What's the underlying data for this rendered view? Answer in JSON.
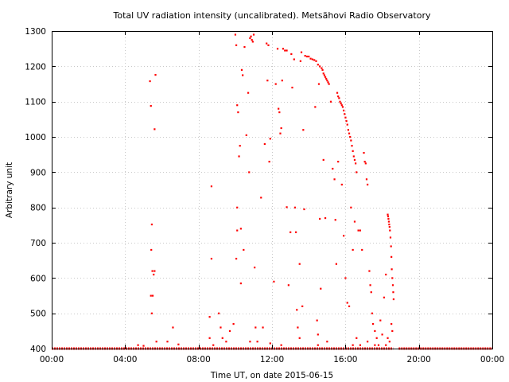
{
  "chart_data": {
    "type": "scatter",
    "title": "Total UV radiation intensity (uncalibrated). Metsähovi Radio Observatory",
    "xlabel": "Time UT, on date 2015-06-15",
    "ylabel": "Arbitrary unit",
    "x_unit": "hours",
    "xlim": [
      0,
      24
    ],
    "ylim": [
      400,
      1300
    ],
    "x_ticks": [
      0,
      4,
      8,
      12,
      16,
      20,
      24
    ],
    "x_tick_labels": [
      "00:00",
      "04:00",
      "08:00",
      "12:00",
      "16:00",
      "20:00",
      "00:00"
    ],
    "y_ticks": [
      400,
      500,
      600,
      700,
      800,
      900,
      1000,
      1100,
      1200,
      1300
    ],
    "y_tick_labels": [
      "400",
      "500",
      "600",
      "700",
      "800",
      "900",
      "1000",
      "1100",
      "1200",
      "1300"
    ],
    "grid": true,
    "marker_color": "#ff0000",
    "baseline": {
      "y": 400,
      "x_ranges": [
        [
          0,
          18.6
        ],
        [
          18.9,
          24
        ]
      ]
    },
    "points": [
      [
        4.7,
        410
      ],
      [
        5.0,
        408
      ],
      [
        5.35,
        1158
      ],
      [
        5.4,
        1088
      ],
      [
        5.45,
        752
      ],
      [
        5.42,
        680
      ],
      [
        5.48,
        620
      ],
      [
        5.55,
        610
      ],
      [
        5.4,
        550
      ],
      [
        5.5,
        550
      ],
      [
        5.45,
        500
      ],
      [
        5.6,
        1022
      ],
      [
        5.65,
        1176
      ],
      [
        5.6,
        620
      ],
      [
        5.7,
        420
      ],
      [
        6.3,
        420
      ],
      [
        6.6,
        460
      ],
      [
        6.9,
        412
      ],
      [
        8.7,
        860
      ],
      [
        8.7,
        655
      ],
      [
        8.6,
        490
      ],
      [
        8.6,
        430
      ],
      [
        8.8,
        410
      ],
      [
        9.1,
        500
      ],
      [
        9.2,
        460
      ],
      [
        9.3,
        430
      ],
      [
        9.5,
        420
      ],
      [
        9.7,
        450
      ],
      [
        9.9,
        470
      ],
      [
        10.0,
        1290
      ],
      [
        10.05,
        1260
      ],
      [
        10.1,
        1090
      ],
      [
        10.15,
        1070
      ],
      [
        10.2,
        945
      ],
      [
        10.25,
        975
      ],
      [
        10.1,
        800
      ],
      [
        10.1,
        735
      ],
      [
        10.05,
        655
      ],
      [
        10.3,
        740
      ],
      [
        10.3,
        585
      ],
      [
        10.35,
        1190
      ],
      [
        10.4,
        1175
      ],
      [
        10.45,
        680
      ],
      [
        10.5,
        1255
      ],
      [
        10.6,
        1005
      ],
      [
        10.7,
        1125
      ],
      [
        10.75,
        900
      ],
      [
        10.8,
        1280
      ],
      [
        10.85,
        1285
      ],
      [
        10.9,
        1275
      ],
      [
        10.95,
        1270
      ],
      [
        11.0,
        1290
      ],
      [
        11.05,
        630
      ],
      [
        11.1,
        460
      ],
      [
        11.2,
        420
      ],
      [
        11.4,
        828
      ],
      [
        11.5,
        460
      ],
      [
        11.6,
        980
      ],
      [
        11.7,
        1265
      ],
      [
        11.75,
        1160
      ],
      [
        11.8,
        1260
      ],
      [
        11.85,
        930
      ],
      [
        11.9,
        995
      ],
      [
        12.1,
        590
      ],
      [
        12.2,
        1150
      ],
      [
        12.3,
        1250
      ],
      [
        12.35,
        1080
      ],
      [
        12.4,
        1070
      ],
      [
        12.45,
        1010
      ],
      [
        12.5,
        1025
      ],
      [
        12.55,
        1160
      ],
      [
        12.6,
        1250
      ],
      [
        12.7,
        1245
      ],
      [
        12.8,
        1245
      ],
      [
        12.9,
        580
      ],
      [
        12.8,
        801
      ],
      [
        13.0,
        730
      ],
      [
        13.05,
        1235
      ],
      [
        13.1,
        1140
      ],
      [
        13.2,
        1220
      ],
      [
        13.25,
        800
      ],
      [
        13.3,
        730
      ],
      [
        13.35,
        510
      ],
      [
        13.4,
        460
      ],
      [
        13.5,
        640
      ],
      [
        13.55,
        1215
      ],
      [
        13.6,
        1240
      ],
      [
        13.65,
        520
      ],
      [
        13.7,
        1020
      ],
      [
        13.75,
        795
      ],
      [
        13.8,
        1230
      ],
      [
        13.9,
        1228
      ],
      [
        14.0,
        1228
      ],
      [
        14.1,
        1222
      ],
      [
        14.2,
        1220
      ],
      [
        14.3,
        1218
      ],
      [
        14.4,
        1215
      ],
      [
        14.5,
        1205
      ],
      [
        14.35,
        1085
      ],
      [
        14.45,
        480
      ],
      [
        14.5,
        440
      ],
      [
        14.55,
        1150
      ],
      [
        14.6,
        1200
      ],
      [
        14.6,
        768
      ],
      [
        14.65,
        570
      ],
      [
        14.7,
        1195
      ],
      [
        14.75,
        1190
      ],
      [
        14.8,
        1180
      ],
      [
        14.85,
        1175
      ],
      [
        14.9,
        1170
      ],
      [
        14.95,
        1165
      ],
      [
        14.8,
        935
      ],
      [
        14.9,
        770
      ],
      [
        15.0,
        1160
      ],
      [
        15.05,
        1155
      ],
      [
        15.1,
        1150
      ],
      [
        15.2,
        1100
      ],
      [
        15.3,
        910
      ],
      [
        15.4,
        880
      ],
      [
        15.45,
        765
      ],
      [
        15.5,
        640
      ],
      [
        15.55,
        1125
      ],
      [
        15.6,
        1115
      ],
      [
        15.65,
        1110
      ],
      [
        15.7,
        1100
      ],
      [
        15.75,
        1095
      ],
      [
        15.8,
        1090
      ],
      [
        15.85,
        1085
      ],
      [
        15.9,
        1075
      ],
      [
        15.95,
        1065
      ],
      [
        16.0,
        1055
      ],
      [
        16.05,
        1045
      ],
      [
        16.1,
        1035
      ],
      [
        16.15,
        1020
      ],
      [
        16.2,
        1010
      ],
      [
        16.25,
        1000
      ],
      [
        16.3,
        990
      ],
      [
        16.35,
        975
      ],
      [
        16.4,
        960
      ],
      [
        16.45,
        945
      ],
      [
        16.5,
        935
      ],
      [
        16.55,
        925
      ],
      [
        15.6,
        930
      ],
      [
        15.8,
        865
      ],
      [
        15.9,
        720
      ],
      [
        16.0,
        600
      ],
      [
        16.1,
        530
      ],
      [
        16.2,
        520
      ],
      [
        16.3,
        800
      ],
      [
        16.4,
        680
      ],
      [
        16.5,
        760
      ],
      [
        16.6,
        900
      ],
      [
        16.7,
        735
      ],
      [
        16.8,
        735
      ],
      [
        16.9,
        680
      ],
      [
        17.0,
        955
      ],
      [
        17.05,
        930
      ],
      [
        17.1,
        925
      ],
      [
        17.15,
        880
      ],
      [
        17.2,
        865
      ],
      [
        17.3,
        620
      ],
      [
        17.35,
        580
      ],
      [
        17.4,
        560
      ],
      [
        17.45,
        500
      ],
      [
        17.5,
        470
      ],
      [
        17.6,
        450
      ],
      [
        17.7,
        430
      ],
      [
        17.8,
        410
      ],
      [
        17.9,
        480
      ],
      [
        18.0,
        440
      ],
      [
        18.1,
        545
      ],
      [
        18.2,
        610
      ],
      [
        18.3,
        780
      ],
      [
        18.32,
        775
      ],
      [
        18.34,
        768
      ],
      [
        18.36,
        760
      ],
      [
        18.38,
        752
      ],
      [
        18.4,
        745
      ],
      [
        18.42,
        735
      ],
      [
        18.45,
        715
      ],
      [
        18.48,
        690
      ],
      [
        18.5,
        660
      ],
      [
        18.52,
        625
      ],
      [
        18.55,
        600
      ],
      [
        18.58,
        580
      ],
      [
        18.6,
        560
      ],
      [
        18.62,
        540
      ],
      [
        18.5,
        470
      ],
      [
        18.55,
        450
      ],
      [
        18.4,
        420
      ],
      [
        18.3,
        430
      ],
      [
        18.2,
        410
      ],
      [
        15.0,
        420
      ],
      [
        14.5,
        410
      ],
      [
        13.5,
        430
      ],
      [
        12.5,
        410
      ],
      [
        11.9,
        415
      ],
      [
        10.8,
        420
      ],
      [
        16.4,
        410
      ],
      [
        16.6,
        430
      ],
      [
        16.8,
        410
      ],
      [
        17.2,
        420
      ],
      [
        17.6,
        410
      ]
    ]
  }
}
